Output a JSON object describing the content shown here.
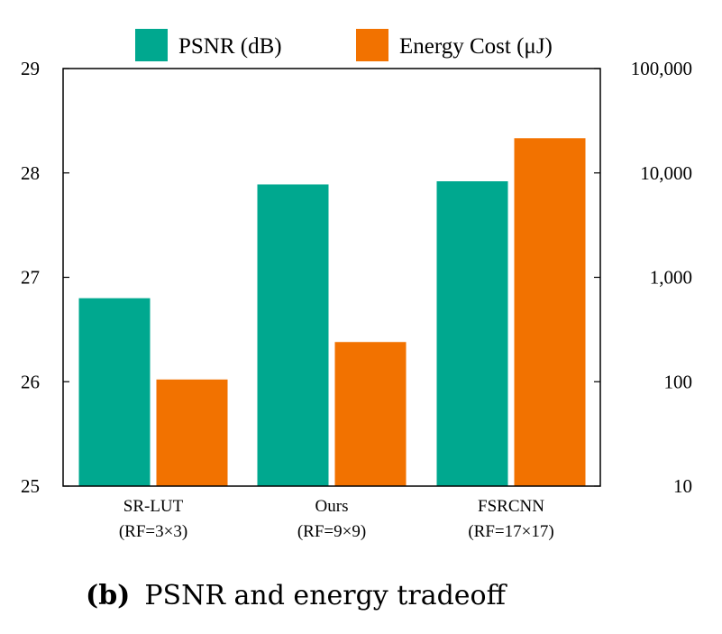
{
  "chart_data": {
    "type": "bar",
    "categories": [
      "SR-LUT",
      "Ours",
      "FSRCNN"
    ],
    "category_sublabels": [
      "(RF=3×3)",
      "(RF=9×9)",
      "(RF=17×17)"
    ],
    "series": [
      {
        "name": "PSNR (dB)",
        "axis": "left",
        "color": "#00A88F",
        "values": [
          26.8,
          27.89,
          27.92
        ]
      },
      {
        "name": "Energy Cost (μJ)",
        "axis": "right",
        "scale": "log",
        "color": "#F27200",
        "values": [
          105,
          240,
          21500
        ]
      }
    ],
    "left_axis": {
      "ylim": [
        25,
        29
      ],
      "ticks": [
        "25",
        "26",
        "27",
        "28",
        "29"
      ]
    },
    "right_axis": {
      "ylim": [
        10,
        100000
      ],
      "ticks": [
        "10",
        "100",
        "1,000",
        "10,000",
        "100,000"
      ]
    },
    "legend": {
      "position": "top"
    },
    "caption": {
      "prefix": "(b)",
      "text": "PSNR and energy tradeoff"
    }
  }
}
